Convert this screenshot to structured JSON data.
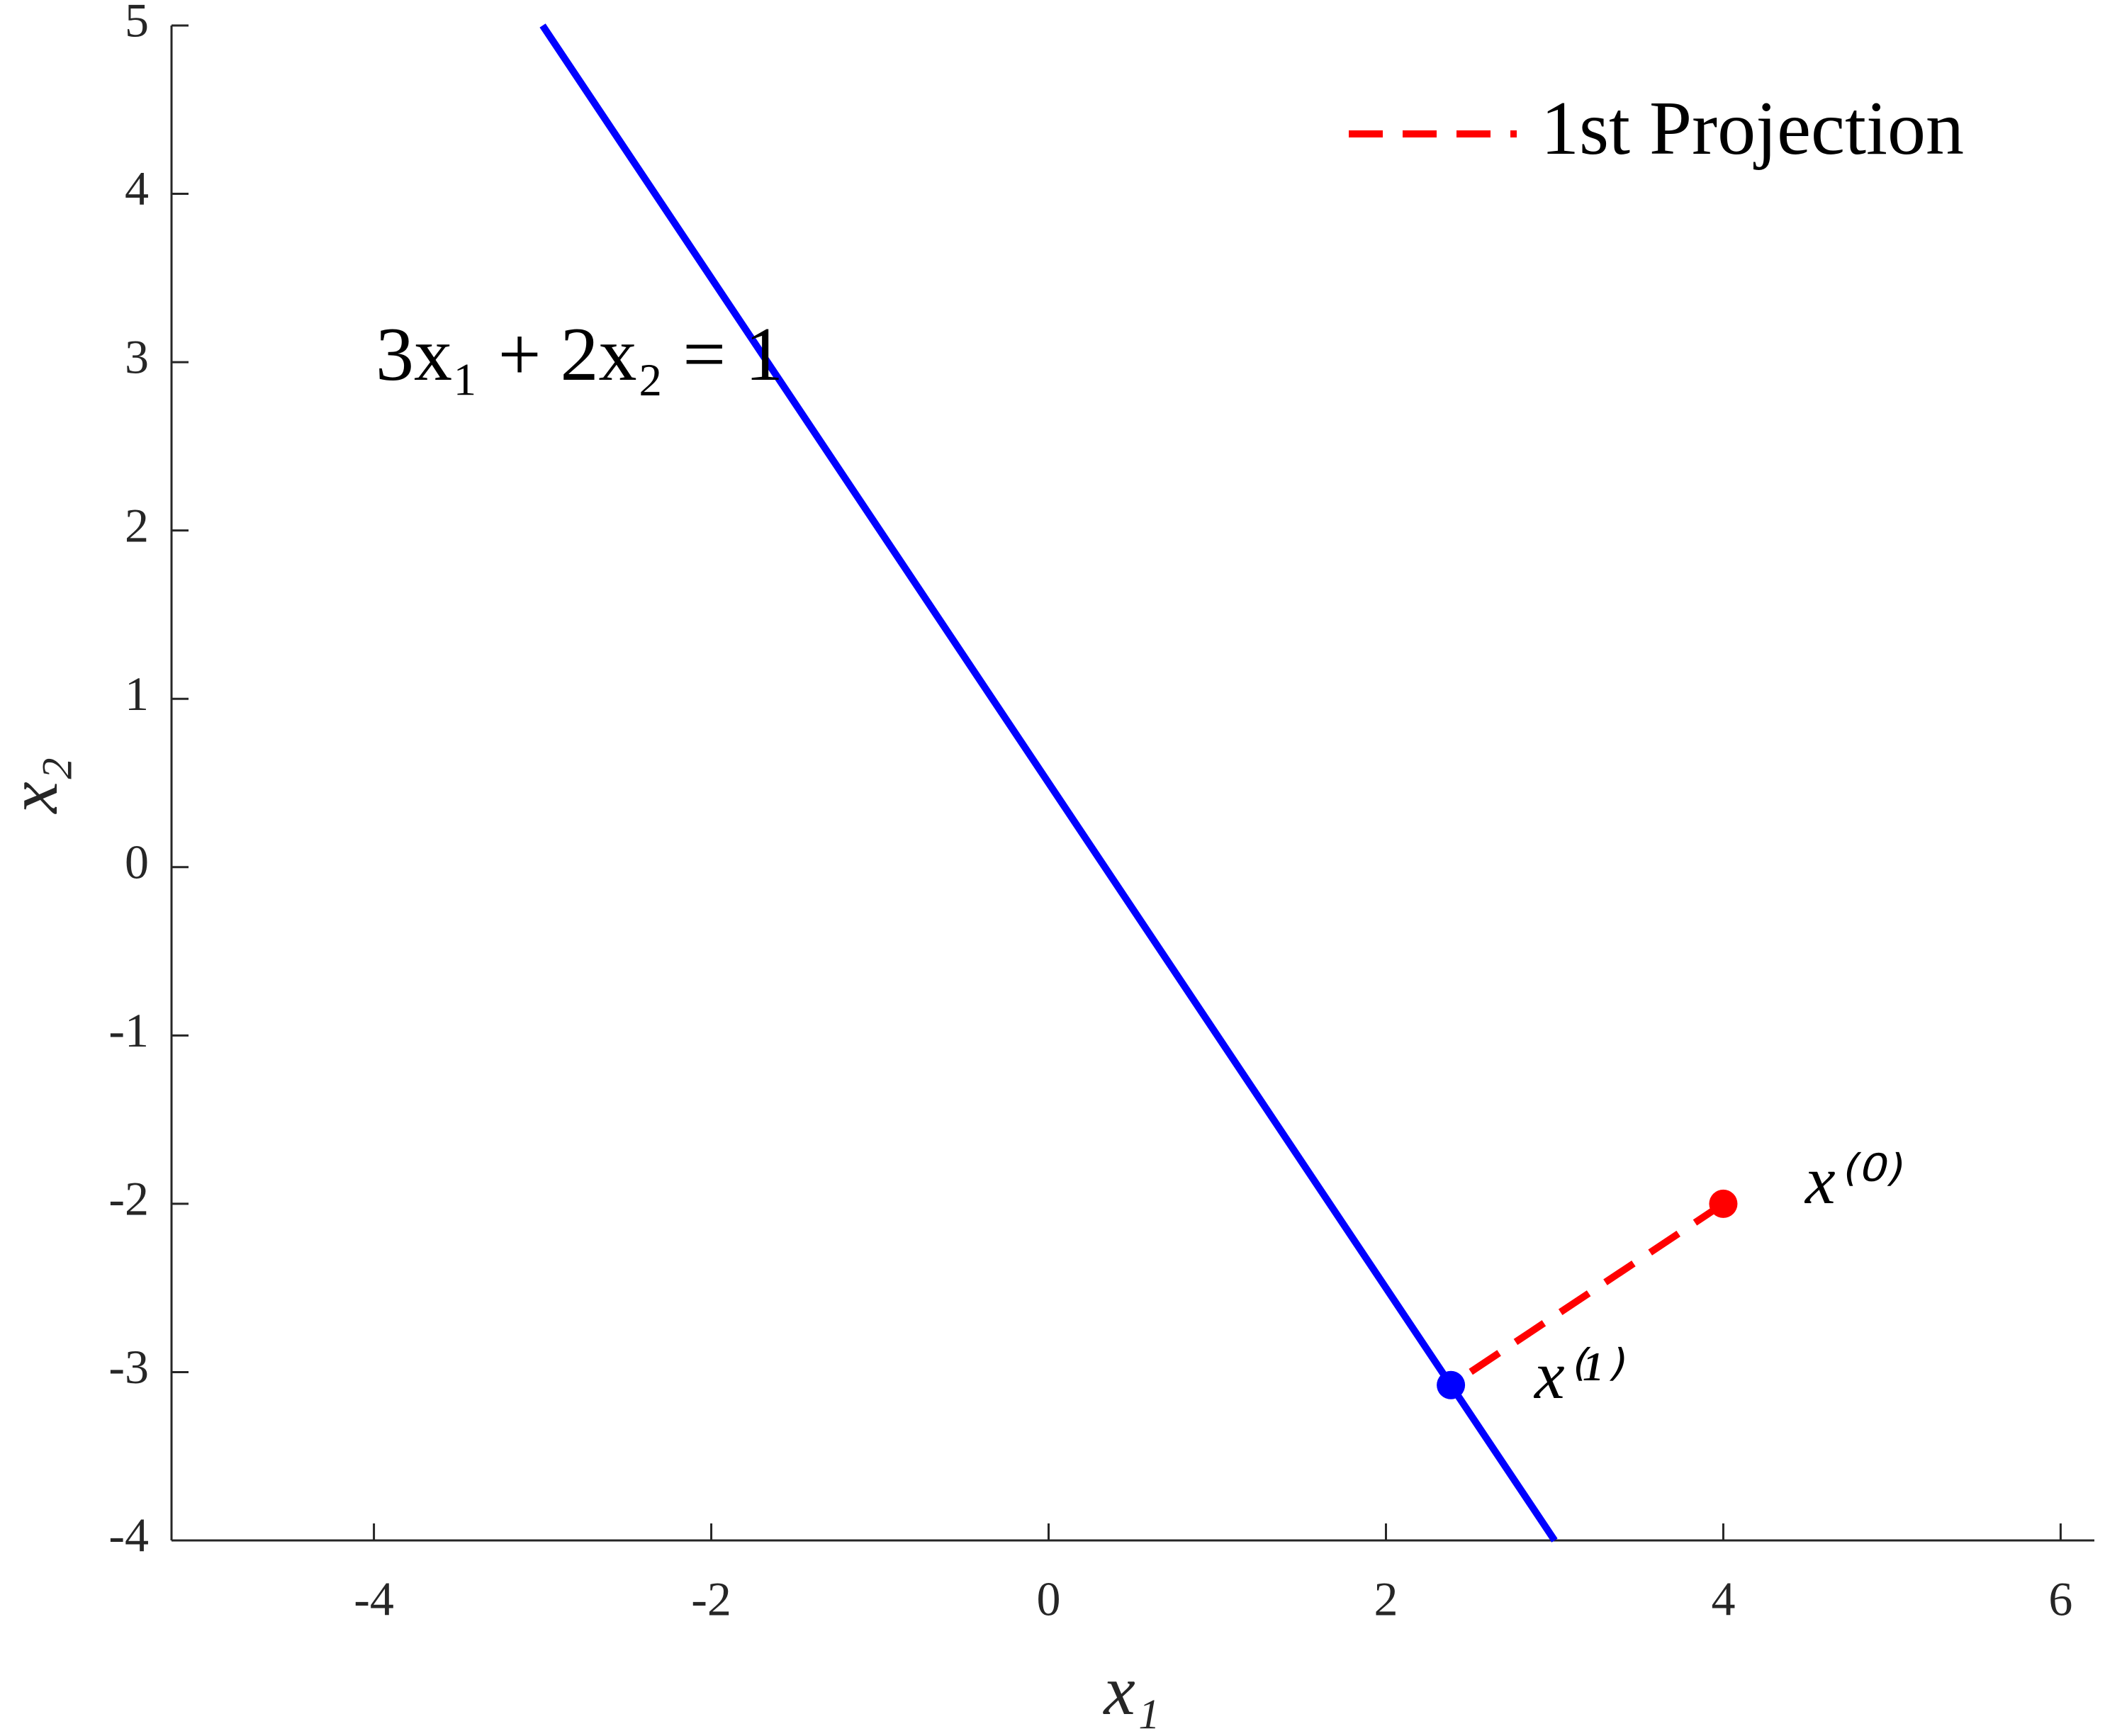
{
  "chart_data": {
    "type": "line",
    "xlabel": "x₁",
    "ylabel": "x₂",
    "xlim": [
      -5.2,
      6.2
    ],
    "xticks": [
      -4,
      -2,
      0,
      2,
      4,
      6
    ],
    "ylim": [
      -4,
      5
    ],
    "yticks": [
      -4,
      -3,
      -2,
      -1,
      0,
      1,
      2,
      3,
      4,
      5
    ],
    "legend": "top-right",
    "series": [
      {
        "color": "#0000ff",
        "x": [
          -3,
          3
        ],
        "values": [
          5,
          -4
        ]
      },
      {
        "name": "1st Projection",
        "color": "#ff0000",
        "dashed": true,
        "x": [
          4,
          2.385
        ],
        "values": [
          -2,
          -3.077
        ]
      }
    ],
    "points": [
      {
        "x": 4,
        "y": -2,
        "color": "#ff0000"
      },
      {
        "x": 2.385,
        "y": -3.077,
        "color": "#0000ff"
      }
    ],
    "annotations": [
      "3x₁ + 2x₂ = 1",
      "x⁽⁰⁾",
      "x⁽¹⁾"
    ]
  }
}
